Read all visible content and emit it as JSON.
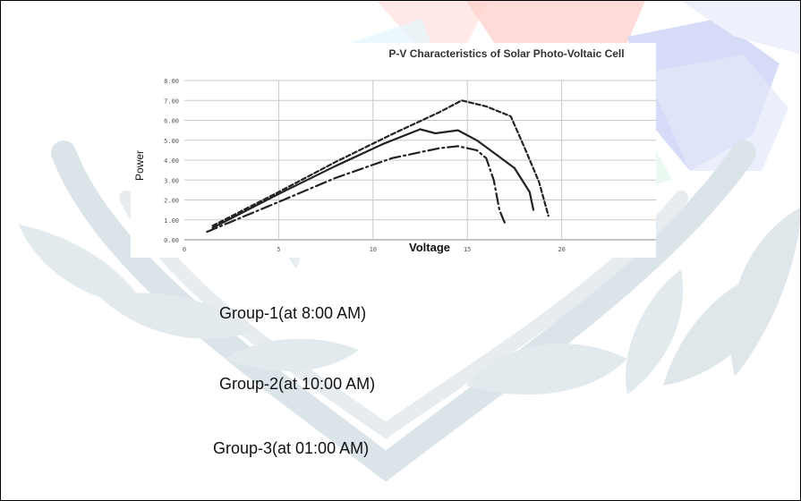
{
  "chart_data": {
    "type": "line",
    "title": "P-V Characteristics of Solar Photo-Voltaic Cell",
    "xlabel": "Voltage",
    "ylabel": "Power",
    "xlim": [
      0,
      25
    ],
    "ylim": [
      0,
      8
    ],
    "x_ticks": [
      "0",
      "5",
      "10",
      "15",
      "20"
    ],
    "y_ticks": [
      "0.00",
      "1.00",
      "2.00",
      "3.00",
      "4.00",
      "5.00",
      "6.00",
      "7.00",
      "8.00"
    ],
    "grid": true,
    "series": [
      {
        "dash": "solid",
        "color": "#222222",
        "points": [
          [
            1.5,
            0.6
          ],
          [
            5,
            2.3
          ],
          [
            8,
            3.7
          ],
          [
            10.5,
            4.8
          ],
          [
            12.5,
            5.55
          ],
          [
            13.3,
            5.35
          ],
          [
            14.5,
            5.5
          ],
          [
            15.5,
            5.0
          ],
          [
            16.5,
            4.3
          ],
          [
            17.5,
            3.6
          ],
          [
            18.3,
            2.4
          ],
          [
            18.5,
            1.5
          ]
        ]
      },
      {
        "dash": "dashed",
        "color": "#222222",
        "points": [
          [
            1.5,
            0.7
          ],
          [
            5,
            2.4
          ],
          [
            8,
            3.9
          ],
          [
            11,
            5.3
          ],
          [
            13.5,
            6.4
          ],
          [
            14.7,
            7.0
          ],
          [
            16,
            6.7
          ],
          [
            17.3,
            6.2
          ],
          [
            18.0,
            4.7
          ],
          [
            18.8,
            2.9
          ],
          [
            19.3,
            1.2
          ]
        ]
      },
      {
        "dash": "dash-dot",
        "color": "#222222",
        "points": [
          [
            1.2,
            0.4
          ],
          [
            5,
            1.9
          ],
          [
            8,
            3.1
          ],
          [
            11,
            4.1
          ],
          [
            13.5,
            4.6
          ],
          [
            14.5,
            4.7
          ],
          [
            15.5,
            4.5
          ],
          [
            16.0,
            4.1
          ],
          [
            16.4,
            3.0
          ],
          [
            16.7,
            1.5
          ],
          [
            17.0,
            0.8
          ]
        ]
      }
    ]
  },
  "legend_text": {
    "group1": "Group-1(at 8:00 AM)",
    "group2": "Group-2(at 10:00 AM)",
    "group3": "Group-3(at 01:00 AM)"
  }
}
